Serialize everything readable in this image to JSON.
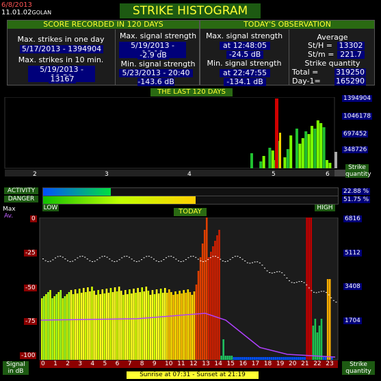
{
  "header": {
    "date": "6/8/2013",
    "version": "11.01.02",
    "location": "GOLAN",
    "title": "STRIKE HISTOGRAM"
  },
  "score": {
    "heading": "SCORE RECORDED IN 120 DAYS",
    "max_day_label": "Max. strikes in one day",
    "max_day_value": "5/17/2013 - 1394904",
    "max_10min_label": "Max. strikes in 10 min.",
    "max_10min_date": "5/19/2013 - 19:50",
    "max_10min_value": "13167",
    "max_sig_label": "Max. signal strength",
    "max_sig_date": "5/19/2013 - 16:10",
    "max_sig_value": "-2.9 dB",
    "min_sig_label": "Min. signal strength",
    "min_sig_date": "5/23/2013 - 20:40",
    "min_sig_value": "-143.6 dB"
  },
  "observation": {
    "heading": "TODAY'S OBSERVATION",
    "max_sig_label": "Max. signal strength",
    "max_sig_time": "at 12:48:05",
    "max_sig_value": "-24.5 dB",
    "min_sig_label": "Min. signal strength",
    "min_sig_time": "at 22:47:55",
    "min_sig_value": "-134.1 dB",
    "avg_label": "Average",
    "sth": "St/H  = 13302",
    "stm": "St/m  = 221.7",
    "qty_label": "Strike quantity",
    "total": "Total  = 319250",
    "day1": "Day-1= 165290"
  },
  "last120": {
    "heading": "THE LAST 120 DAYS",
    "yticks": [
      "1394904",
      "1046178",
      "697452",
      "348726"
    ],
    "months": [
      "2",
      "3",
      "4",
      "5",
      "6"
    ],
    "axis_label_1": "Strike",
    "axis_label_2": "quantity"
  },
  "meters": {
    "activity_label": "ACTIVITY",
    "activity_value": "22.88 %",
    "activity_fraction": 0.2288,
    "danger_label": "DANGER",
    "danger_value": "51.75 %",
    "danger_fraction": 0.5175,
    "low": "LOW",
    "high": "HIGH"
  },
  "today": {
    "heading": "TODAY",
    "left_ticks": [
      "0",
      "-25",
      "-50",
      "-75",
      "-100"
    ],
    "right_ticks": [
      "6816",
      "5112",
      "3408",
      "1704"
    ],
    "legend_max": "Max",
    "legend_av": "Av.",
    "hours": [
      "0",
      "1",
      "2",
      "3",
      "4",
      "5",
      "6",
      "7",
      "8",
      "9",
      "10",
      "11",
      "12",
      "13",
      "14",
      "15",
      "16",
      "17",
      "18",
      "19",
      "20",
      "21",
      "22",
      "23"
    ],
    "signal_label_1": "Signal",
    "signal_label_2": "in dB",
    "strike_label_1": "Strike",
    "strike_label_2": "quantity",
    "sun": "Sunrise at 07:31  -  Sunset at 21:19"
  },
  "colors": {
    "panel_head": "#2a6a12",
    "title_text": "#ffff33",
    "value_bg": "#00007a",
    "red_axis": "#8c0000"
  }
}
